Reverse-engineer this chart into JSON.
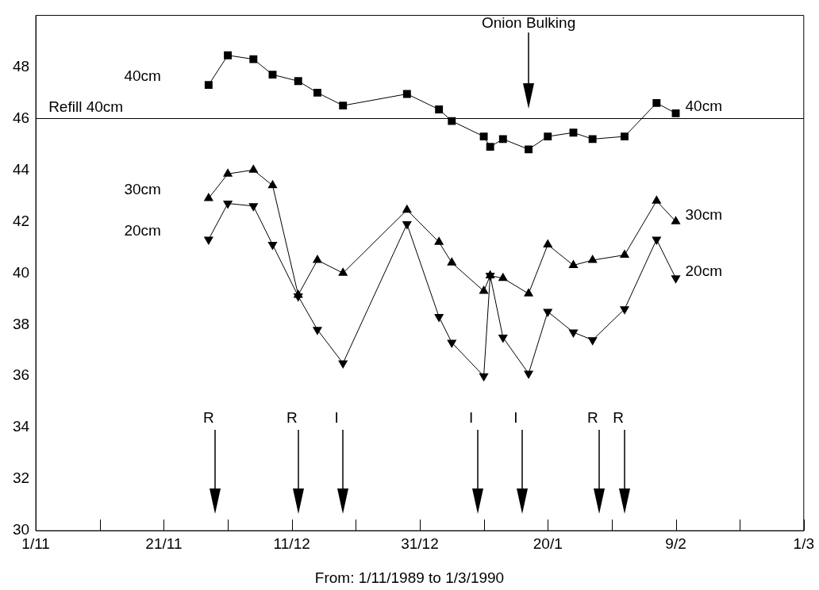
{
  "chart_data": {
    "type": "line",
    "xlabel": "From: 1/11/1989 to 1/3/1990",
    "x": [
      "1989-11-28",
      "1989-12-01",
      "1989-12-05",
      "1989-12-08",
      "1989-12-12",
      "1989-12-15",
      "1989-12-19",
      "1989-12-29",
      "1990-01-03",
      "1990-01-05",
      "1990-01-10",
      "1990-01-11",
      "1990-01-13",
      "1990-01-17",
      "1990-01-20",
      "1990-01-24",
      "1990-01-27",
      "1990-02-01",
      "1990-02-06",
      "1990-02-09"
    ],
    "series": [
      {
        "name": "40cm",
        "color": "#000000",
        "marker": "square",
        "values": [
          47.3,
          48.45,
          48.3,
          47.7,
          47.45,
          47.0,
          46.5,
          46.95,
          46.35,
          45.9,
          45.3,
          44.9,
          45.2,
          44.8,
          45.3,
          45.45,
          45.2,
          45.3,
          46.6,
          46.2
        ]
      },
      {
        "name": "30cm",
        "color": "#000000",
        "marker": "triangle",
        "values": [
          42.9,
          43.85,
          44.0,
          43.4,
          39.15,
          40.5,
          40.0,
          42.45,
          41.2,
          40.4,
          39.3,
          39.9,
          39.8,
          39.2,
          41.1,
          40.3,
          40.5,
          40.7,
          42.8,
          42.0
        ]
      },
      {
        "name": "20cm",
        "color": "#000000",
        "marker": "triangle_down",
        "values": [
          41.3,
          42.7,
          42.6,
          41.1,
          39.1,
          37.8,
          36.5,
          41.9,
          38.3,
          37.3,
          36.0,
          39.9,
          37.5,
          36.1,
          38.5,
          37.7,
          37.4,
          38.6,
          41.3,
          39.8
        ]
      }
    ],
    "xlim": [
      "1989-11-01",
      "1990-03-01"
    ],
    "xticks": [
      {
        "value": "1989-11-01",
        "label": "1/11"
      },
      {
        "value": "1989-11-11",
        "label": null
      },
      {
        "value": "1989-11-21",
        "label": "21/11"
      },
      {
        "value": "1989-12-01",
        "label": null
      },
      {
        "value": "1989-12-11",
        "label": "11/12"
      },
      {
        "value": "1989-12-21",
        "label": null
      },
      {
        "value": "1989-12-31",
        "label": "31/12"
      },
      {
        "value": "1990-01-10",
        "label": null
      },
      {
        "value": "1990-01-20",
        "label": "20/1"
      },
      {
        "value": "1990-01-30",
        "label": null
      },
      {
        "value": "1990-02-09",
        "label": "9/2"
      },
      {
        "value": "1990-02-19",
        "label": null
      },
      {
        "value": "1990-03-01",
        "label": "1/3"
      }
    ],
    "ylim": [
      30,
      50
    ],
    "yticks": [
      30,
      32,
      34,
      36,
      38,
      40,
      42,
      44,
      46,
      48
    ],
    "grid": false,
    "legend": false,
    "line_style": "solid",
    "ref_lines": [
      {
        "axis": "y",
        "value": 46,
        "label": "Refill 40cm",
        "color": "#000000"
      },
      {
        "axis": "x",
        "value": "1989-11-29",
        "label": "R",
        "color": "#000000"
      },
      {
        "axis": "x",
        "value": "1989-12-12",
        "label": "R",
        "color": "#000000"
      },
      {
        "axis": "x",
        "value": "1989-12-19",
        "label": "I",
        "color": "#000000"
      },
      {
        "axis": "x",
        "value": "1990-01-09",
        "label": "I",
        "color": "#000000"
      },
      {
        "axis": "x",
        "value": "1990-01-16",
        "label": "I",
        "color": "#000000"
      },
      {
        "axis": "x",
        "value": "1990-01-28",
        "label": "R",
        "color": "#000000"
      },
      {
        "axis": "x",
        "value": "1990-02-01",
        "label": "R",
        "color": "#000000"
      },
      {
        "axis": "x",
        "value": "1990-01-17",
        "label": "Onion Bulking",
        "color": "#000000"
      }
    ]
  }
}
